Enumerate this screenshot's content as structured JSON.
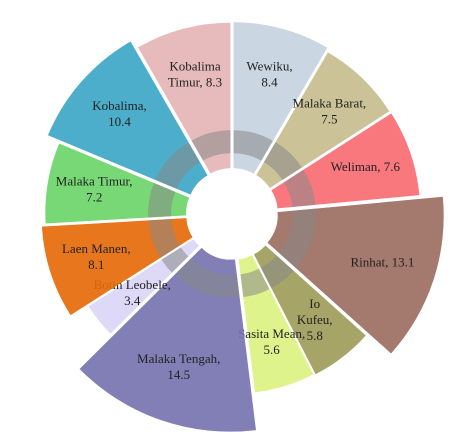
{
  "chart_data": {
    "type": "rose",
    "labels": [
      [
        "Wewiku,",
        "8.4"
      ],
      [
        "Malaka Barat,",
        "7.5"
      ],
      [
        "Weliman, 7.6"
      ],
      [
        "Rinhat, 13.1"
      ],
      [
        "Io",
        "Kufeu,",
        "5.8"
      ],
      [
        "Sasita Mean,",
        "5.6"
      ],
      [
        "Malaka Tengah,",
        "14.5"
      ],
      [
        "Botin Leobele,",
        "3.4"
      ],
      [
        "Laen Manen,",
        "8.1"
      ],
      [
        "Malaka Timur,",
        "7.2"
      ],
      [
        "Kobalima,",
        "10.4"
      ],
      [
        "Kobalima",
        "Timur, 8.3"
      ]
    ],
    "values": [
      8.4,
      7.5,
      7.6,
      13.1,
      5.8,
      5.6,
      14.5,
      3.4,
      8.1,
      7.2,
      10.4,
      8.3
    ],
    "colors": [
      "#c5d3df",
      "#c7bd8e",
      "#f76d73",
      "#9c6e62",
      "#a09c5a",
      "#dcf283",
      "#7674b0",
      "#dcd6f7",
      "#e66a0a",
      "#6cd56a",
      "#3ea7c8",
      "#e5b5b5"
    ]
  }
}
